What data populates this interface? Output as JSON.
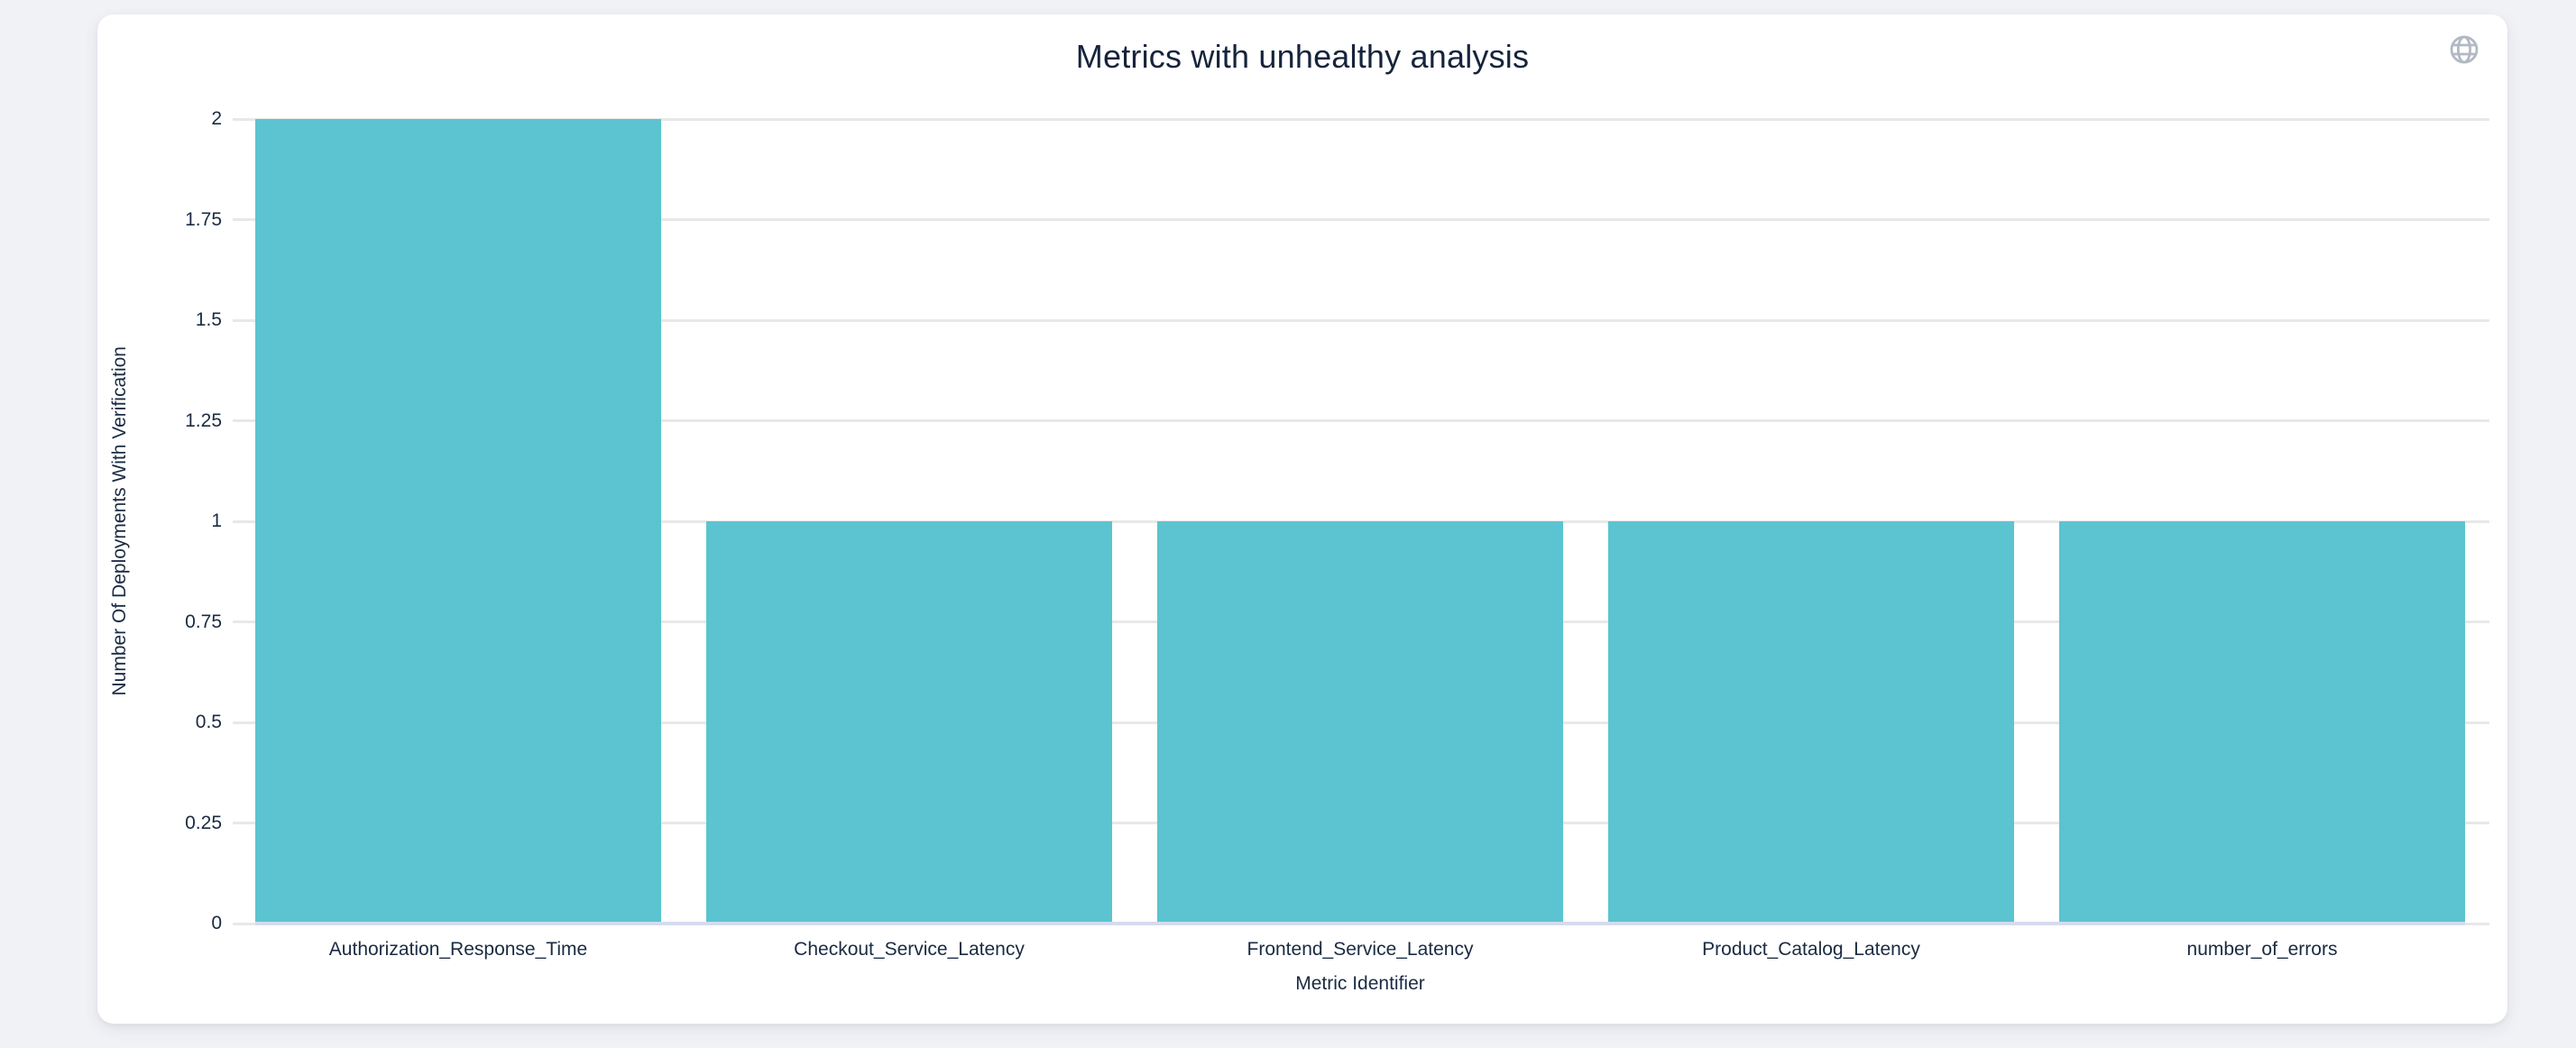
{
  "header": {
    "title": "Metrics with unhealthy analysis",
    "globe_icon": "globe"
  },
  "chart_data": {
    "type": "bar",
    "title": "Metrics with unhealthy analysis",
    "xlabel": "Metric Identifier",
    "ylabel": "Number Of Deployments With Verification",
    "categories": [
      "Authorization_Response_Time",
      "Checkout_Service_Latency",
      "Frontend_Service_Latency",
      "Product_Catalog_Latency",
      "number_of_errors"
    ],
    "values": [
      2,
      1,
      1,
      1,
      1
    ],
    "ylim": [
      0,
      2
    ],
    "yticks": [
      "0",
      "0.25",
      "0.5",
      "0.75",
      "1",
      "1.25",
      "1.5",
      "1.75",
      "2"
    ],
    "grid": true,
    "legend": "none",
    "bar_color": "#5bc4d0"
  },
  "colors": {
    "background": "#f1f2f6",
    "card": "#ffffff",
    "text": "#1a2b42",
    "title_text": "#16243c",
    "gridline": "#e8e8e8",
    "zero_axis_line": "#d5dbee",
    "bar": "#5bc4d0",
    "globe_icon": "#b2b9c4"
  }
}
